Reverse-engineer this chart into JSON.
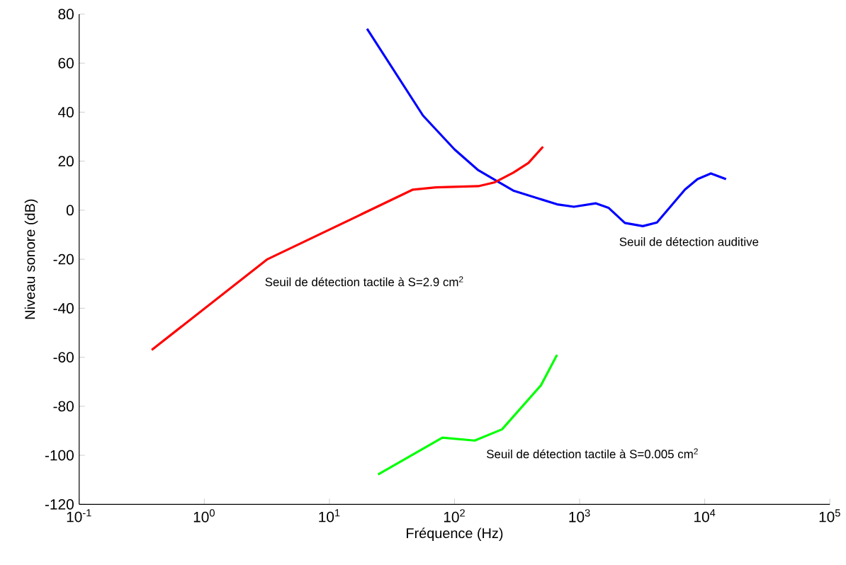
{
  "chart_data": {
    "type": "line",
    "xlabel": "Fréquence (Hz)",
    "ylabel": "Niveau sonore (dB)",
    "log": "x",
    "xlim": [
      0.1,
      100000
    ],
    "ylim": [
      -120,
      80
    ],
    "xticks": [
      {
        "value": 0.1,
        "label": "10$^{-1}$"
      },
      {
        "value": 1,
        "label": "10$^{0}$"
      },
      {
        "value": 10,
        "label": "10$^{1}$"
      },
      {
        "value": 100,
        "label": "10$^{2}$"
      },
      {
        "value": 1000,
        "label": "10$^{3}$"
      },
      {
        "value": 10000,
        "label": "10$^{4}$"
      },
      {
        "value": 100000,
        "label": "10$^{5}$"
      }
    ],
    "yticks": [
      -120,
      -100,
      -80,
      -60,
      -40,
      -20,
      0,
      20,
      40,
      60,
      80
    ],
    "grid": false,
    "legend": false,
    "marker": "none",
    "line_style": "solid",
    "series": [
      {
        "name": "Seuil de détection auditive",
        "color": "#0000ff",
        "x": [
          20,
          56,
          100,
          155,
          295,
          660,
          900,
          1350,
          1700,
          2300,
          3200,
          4150,
          6950,
          8750,
          11200,
          14800
        ],
        "values": [
          74,
          38.6,
          24.8,
          16.3,
          8,
          2.4,
          1.4,
          2.8,
          1,
          -5.2,
          -6.5,
          -5,
          8.4,
          12.7,
          15,
          12.7
        ]
      },
      {
        "name": "Seuil de  détection tactile à S=2.9 cm$^{2}$",
        "color": "#ff0000",
        "x": [
          0.38,
          3.2,
          46.5,
          71,
          155,
          210,
          295,
          390,
          510
        ],
        "values": [
          -57,
          -20,
          8.4,
          9.3,
          9.8,
          11.4,
          15.3,
          19.3,
          25.9
        ]
      },
      {
        "name": "Seuil de  détection tactile à S=0.005 cm$^{2}$",
        "color": "#00ff00",
        "x": [
          24.5,
          80,
          145,
          240,
          490,
          660
        ],
        "values": [
          -107.8,
          -92.8,
          -94,
          -89.4,
          -71.5,
          -59
        ]
      }
    ]
  }
}
